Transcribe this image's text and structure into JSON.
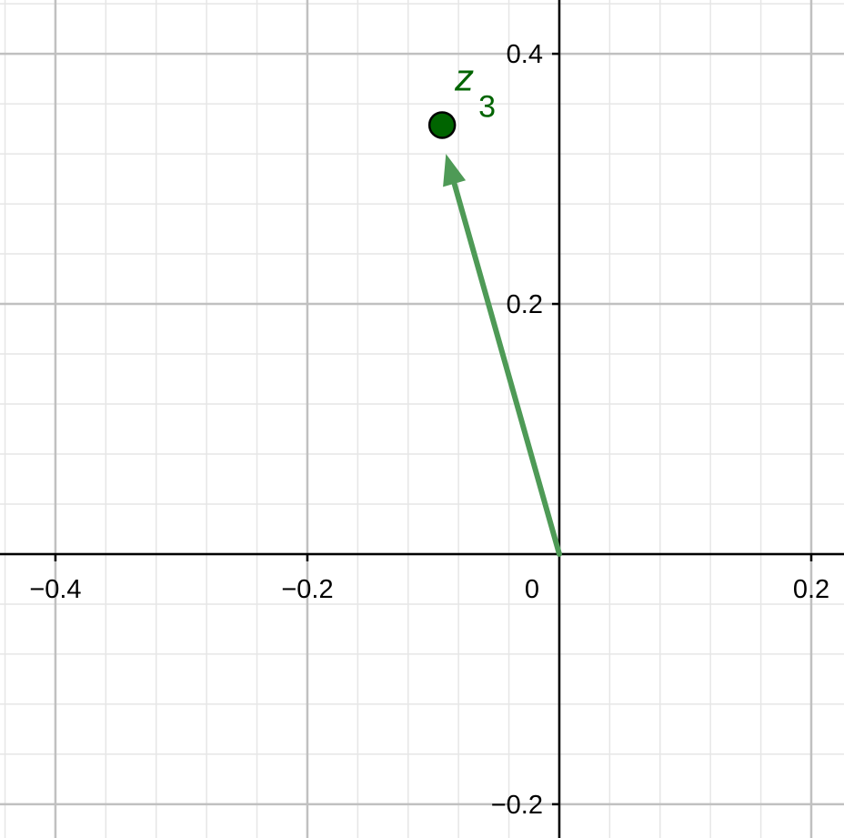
{
  "chart_data": {
    "type": "scatter",
    "title": "",
    "xlabel": "",
    "ylabel": "",
    "xlim": [
      -0.444,
      0.226
    ],
    "ylim": [
      -0.227,
      0.443
    ],
    "grid": true,
    "x_ticks": [
      {
        "value": -0.4,
        "label": "−0.4"
      },
      {
        "value": -0.2,
        "label": "−0.2"
      },
      {
        "value": 0.2,
        "label": "0.2"
      }
    ],
    "y_ticks": [
      {
        "value": 0.4,
        "label": "0.4"
      },
      {
        "value": 0.2,
        "label": "0.2"
      },
      {
        "value": -0.2,
        "label": "−0.2"
      }
    ],
    "origin_label": "0",
    "vectors": [
      {
        "from": [
          0,
          0
        ],
        "to": [
          -0.09,
          0.32
        ],
        "color": "#4e9a56"
      }
    ],
    "points": [
      {
        "x": -0.093,
        "y": 0.343,
        "label": "z",
        "subscript": "3",
        "color": "#006400"
      }
    ],
    "colors": {
      "axis": "#000000",
      "major_grid": "#c0c0c0",
      "minor_grid": "#e6e6e6"
    }
  }
}
